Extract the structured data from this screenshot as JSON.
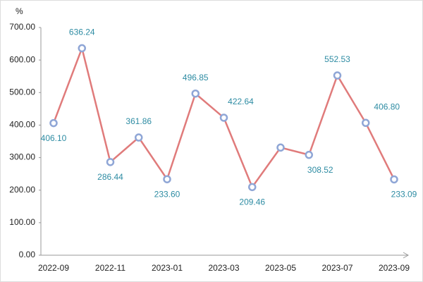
{
  "chart_data": {
    "type": "line",
    "y_label": "%",
    "categories": [
      "2022-09",
      null,
      "2022-11",
      null,
      "2023-01",
      null,
      "2023-03",
      null,
      "2023-05",
      null,
      "2023-07",
      null,
      "2023-09"
    ],
    "series": [
      {
        "name": "value",
        "color": "#e07b7b",
        "marker_color": "#8fa6d6",
        "values": [
          406.1,
          636.24,
          286.44,
          361.86,
          233.6,
          496.85,
          422.64,
          209.46,
          331,
          308.52,
          552.53,
          406.8,
          233.09
        ],
        "value_labels": [
          "406.10",
          "636.24",
          "286.44",
          "361.86",
          "233.60",
          "496.85",
          "422.64",
          "209.46",
          null,
          "308.52",
          "552.53",
          "406.80",
          "233.09"
        ]
      }
    ],
    "ylim": [
      0,
      700
    ],
    "yticks": [
      {
        "value": 0,
        "label": "0.00"
      },
      {
        "value": 100,
        "label": "100.00"
      },
      {
        "value": 200,
        "label": "200.00"
      },
      {
        "value": 300,
        "label": "300.00"
      },
      {
        "value": 400,
        "label": "400.00"
      },
      {
        "value": 500,
        "label": "500.00"
      },
      {
        "value": 600,
        "label": "600.00"
      },
      {
        "value": 700,
        "label": "700.00"
      }
    ],
    "grid": false
  }
}
